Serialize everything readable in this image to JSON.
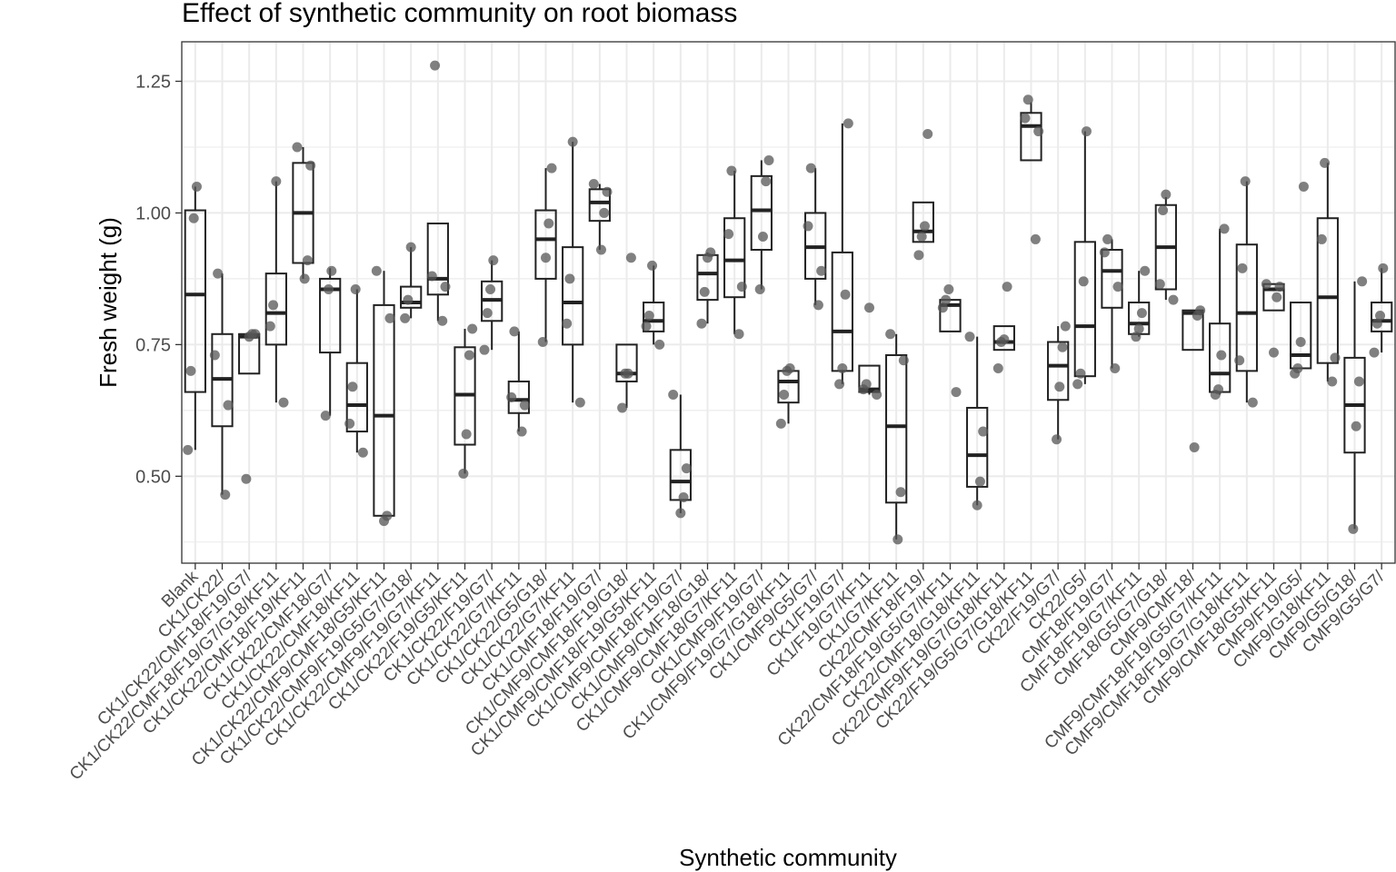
{
  "chart_data": {
    "type": "boxplot",
    "title": "Effect of synthetic community on root biomass",
    "xlabel": "Synthetic community",
    "ylabel": "Fresh weight (g)",
    "ylim": [
      0.335,
      1.325
    ],
    "yticks": [
      0.5,
      0.75,
      1.0,
      1.25
    ],
    "ytick_labels": [
      "0.50",
      "0.75",
      "1.00",
      "1.25"
    ],
    "grid": true,
    "colors": {
      "box": "#222222",
      "point": "#555555",
      "grid": "#ebebeb",
      "panel_border": "#333333"
    },
    "groups": [
      {
        "label": "Blank",
        "q1": 0.66,
        "median": 0.845,
        "q3": 1.005,
        "lower": 0.55,
        "upper": 1.05,
        "points": [
          0.55,
          0.7,
          0.99,
          1.05
        ]
      },
      {
        "label": "CK1/CK22/",
        "q1": 0.595,
        "median": 0.685,
        "q3": 0.77,
        "lower": 0.465,
        "upper": 0.885,
        "points": [
          0.465,
          0.635,
          0.73,
          0.885
        ]
      },
      {
        "label": "CK1/CK22/CMF18/F19/G7/",
        "q1": 0.695,
        "median": 0.765,
        "q3": 0.77,
        "lower": 0.695,
        "upper": 0.77,
        "points": [
          0.495,
          0.765,
          0.77,
          0.77
        ]
      },
      {
        "label": "CK1/CK22/CMF18/F19/G7/G18/KF11",
        "q1": 0.75,
        "median": 0.81,
        "q3": 0.885,
        "lower": 0.64,
        "upper": 1.06,
        "points": [
          0.64,
          0.785,
          0.825,
          1.06
        ]
      },
      {
        "label": "CK1/CK22/CMF18/F19/KF11",
        "q1": 0.905,
        "median": 1.0,
        "q3": 1.095,
        "lower": 0.875,
        "upper": 1.125,
        "points": [
          0.875,
          0.91,
          1.09,
          1.125
        ]
      },
      {
        "label": "CK1/CK22/CMF18/G7/",
        "q1": 0.735,
        "median": 0.855,
        "q3": 0.875,
        "lower": 0.615,
        "upper": 0.895,
        "points": [
          0.615,
          0.855,
          0.89
        ]
      },
      {
        "label": "CK1/CK22/CMF18/KF11",
        "q1": 0.585,
        "median": 0.635,
        "q3": 0.715,
        "lower": 0.545,
        "upper": 0.855,
        "points": [
          0.545,
          0.6,
          0.67,
          0.855
        ]
      },
      {
        "label": "CK1/CK22/CMF9/CMF18/G5/KF11",
        "q1": 0.425,
        "median": 0.615,
        "q3": 0.825,
        "lower": 0.425,
        "upper": 0.89,
        "points": [
          0.415,
          0.425,
          0.8,
          0.89
        ]
      },
      {
        "label": "CK1/CK22/CMF9/F19/G5/G7/G18/",
        "q1": 0.82,
        "median": 0.83,
        "q3": 0.86,
        "lower": 0.8,
        "upper": 0.935,
        "points": [
          0.8,
          0.835,
          0.935
        ]
      },
      {
        "label": "CK1/CK22/CMF9/F19/G7/KF11",
        "q1": 0.845,
        "median": 0.875,
        "q3": 0.98,
        "lower": 0.795,
        "upper": 0.98,
        "points": [
          0.795,
          0.86,
          0.88,
          1.28
        ]
      },
      {
        "label": "CK1/CK22/F19/G5/KF11",
        "q1": 0.56,
        "median": 0.655,
        "q3": 0.745,
        "lower": 0.505,
        "upper": 0.78,
        "points": [
          0.505,
          0.58,
          0.73,
          0.78
        ]
      },
      {
        "label": "CK1/CK22/F19/G7/",
        "q1": 0.795,
        "median": 0.835,
        "q3": 0.87,
        "lower": 0.74,
        "upper": 0.91,
        "points": [
          0.74,
          0.81,
          0.855,
          0.91
        ]
      },
      {
        "label": "CK1/CK22/G7/KF11",
        "q1": 0.62,
        "median": 0.645,
        "q3": 0.68,
        "lower": 0.585,
        "upper": 0.775,
        "points": [
          0.585,
          0.635,
          0.65,
          0.775
        ]
      },
      {
        "label": "CK1/CK22/G5/G18/",
        "q1": 0.875,
        "median": 0.95,
        "q3": 1.005,
        "lower": 0.755,
        "upper": 1.085,
        "points": [
          0.755,
          0.915,
          0.98,
          1.085
        ]
      },
      {
        "label": "CK1/CK22/G7/KF11",
        "q1": 0.75,
        "median": 0.83,
        "q3": 0.935,
        "lower": 0.64,
        "upper": 1.135,
        "points": [
          0.64,
          0.79,
          0.875,
          1.135
        ]
      },
      {
        "label": "CK1/CMF18/F19/G7/",
        "q1": 0.985,
        "median": 1.02,
        "q3": 1.045,
        "lower": 0.93,
        "upper": 1.055,
        "points": [
          0.93,
          1.0,
          1.04,
          1.055
        ]
      },
      {
        "label": "CK1/CMF9/CMF18/F19/G18/",
        "q1": 0.68,
        "median": 0.695,
        "q3": 0.75,
        "lower": 0.63,
        "upper": 0.75,
        "points": [
          0.63,
          0.695,
          0.695,
          0.915
        ]
      },
      {
        "label": "CK1/CMF9/CMF18/F19/G5/KF11",
        "q1": 0.775,
        "median": 0.795,
        "q3": 0.83,
        "lower": 0.75,
        "upper": 0.9,
        "points": [
          0.75,
          0.785,
          0.805,
          0.9
        ]
      },
      {
        "label": "CK1/CMF9/CMF18/F19/G7/",
        "q1": 0.455,
        "median": 0.49,
        "q3": 0.55,
        "lower": 0.43,
        "upper": 0.655,
        "points": [
          0.43,
          0.46,
          0.515,
          0.655
        ]
      },
      {
        "label": "CK1/CMF9/CMF18/G18/",
        "q1": 0.835,
        "median": 0.885,
        "q3": 0.92,
        "lower": 0.79,
        "upper": 0.925,
        "points": [
          0.79,
          0.85,
          0.915,
          0.925
        ]
      },
      {
        "label": "CK1/CMF9/CMF18/G7/KF11",
        "q1": 0.84,
        "median": 0.91,
        "q3": 0.99,
        "lower": 0.77,
        "upper": 1.08,
        "points": [
          0.77,
          0.86,
          0.96,
          1.08
        ]
      },
      {
        "label": "CK1/CMF9/F19/G7/",
        "q1": 0.93,
        "median": 1.005,
        "q3": 1.07,
        "lower": 0.855,
        "upper": 1.1,
        "points": [
          0.855,
          0.955,
          1.06,
          1.1
        ]
      },
      {
        "label": "CK1/CMF9/F19/G7/G18/KF11",
        "q1": 0.64,
        "median": 0.68,
        "q3": 0.7,
        "lower": 0.6,
        "upper": 0.7,
        "points": [
          0.6,
          0.655,
          0.7,
          0.705
        ]
      },
      {
        "label": "CK1/CMF9/G5/G7/",
        "q1": 0.875,
        "median": 0.935,
        "q3": 1.0,
        "lower": 0.825,
        "upper": 1.085,
        "points": [
          0.825,
          0.89,
          0.975,
          1.085
        ]
      },
      {
        "label": "CK1/F19/G7/",
        "q1": 0.7,
        "median": 0.775,
        "q3": 0.925,
        "lower": 0.675,
        "upper": 1.17,
        "points": [
          0.675,
          0.705,
          0.845,
          1.17
        ]
      },
      {
        "label": "CK1/F19/G7/KF11",
        "q1": 0.66,
        "median": 0.665,
        "q3": 0.71,
        "lower": 0.655,
        "upper": 0.71,
        "points": [
          0.655,
          0.665,
          0.675,
          0.82
        ]
      },
      {
        "label": "CK1/G7/KF11",
        "q1": 0.45,
        "median": 0.595,
        "q3": 0.73,
        "lower": 0.38,
        "upper": 0.77,
        "points": [
          0.38,
          0.47,
          0.72,
          0.77
        ]
      },
      {
        "label": "CK22/CMF18/F19/",
        "q1": 0.945,
        "median": 0.965,
        "q3": 1.02,
        "lower": 0.945,
        "upper": 1.02,
        "points": [
          0.92,
          0.955,
          0.975,
          1.15
        ]
      },
      {
        "label": "CK22/CMF18/F19/G5/G7/KF11",
        "q1": 0.775,
        "median": 0.825,
        "q3": 0.835,
        "lower": 0.775,
        "upper": 0.835,
        "points": [
          0.66,
          0.82,
          0.835,
          0.855
        ]
      },
      {
        "label": "CK22/CMF18/G18/KF11",
        "q1": 0.48,
        "median": 0.54,
        "q3": 0.63,
        "lower": 0.445,
        "upper": 0.765,
        "points": [
          0.445,
          0.49,
          0.585,
          0.765
        ]
      },
      {
        "label": "CK22/CMF9/F19/G7/G18/KF11",
        "q1": 0.74,
        "median": 0.755,
        "q3": 0.785,
        "lower": 0.74,
        "upper": 0.785,
        "points": [
          0.705,
          0.755,
          0.76,
          0.86
        ]
      },
      {
        "label": "CK22/F19/G5/G7/G18/KF11",
        "q1": 1.1,
        "median": 1.165,
        "q3": 1.19,
        "lower": 1.1,
        "upper": 1.21,
        "points": [
          0.95,
          1.155,
          1.18,
          1.215
        ]
      },
      {
        "label": "CK22/F19/G7/",
        "q1": 0.645,
        "median": 0.71,
        "q3": 0.755,
        "lower": 0.57,
        "upper": 0.785,
        "points": [
          0.57,
          0.67,
          0.745,
          0.785
        ]
      },
      {
        "label": "CK22/G5/",
        "q1": 0.69,
        "median": 0.785,
        "q3": 0.945,
        "lower": 0.675,
        "upper": 1.155,
        "points": [
          0.675,
          0.695,
          0.87,
          1.155
        ]
      },
      {
        "label": "CMF18/F19/G7/",
        "q1": 0.82,
        "median": 0.89,
        "q3": 0.93,
        "lower": 0.705,
        "upper": 0.95,
        "points": [
          0.705,
          0.86,
          0.925,
          0.95
        ]
      },
      {
        "label": "CMF18/F19/G7/KF11",
        "q1": 0.77,
        "median": 0.79,
        "q3": 0.83,
        "lower": 0.765,
        "upper": 0.89,
        "points": [
          0.765,
          0.78,
          0.81,
          0.89
        ]
      },
      {
        "label": "CMF18/G5/G7/G18/",
        "q1": 0.855,
        "median": 0.935,
        "q3": 1.015,
        "lower": 0.835,
        "upper": 1.03,
        "points": [
          0.835,
          0.865,
          1.005,
          1.035
        ]
      },
      {
        "label": "CMF9/CMF18/",
        "q1": 0.74,
        "median": 0.81,
        "q3": 0.815,
        "lower": 0.74,
        "upper": 0.815,
        "points": [
          0.555,
          0.805,
          0.815
        ]
      },
      {
        "label": "CMF9/CMF18/F19/G5/G7/KF11",
        "q1": 0.66,
        "median": 0.695,
        "q3": 0.79,
        "lower": 0.655,
        "upper": 0.97,
        "points": [
          0.655,
          0.665,
          0.73,
          0.97
        ]
      },
      {
        "label": "CMF9/CMF18/F19/G7/G18/KF11",
        "q1": 0.7,
        "median": 0.81,
        "q3": 0.94,
        "lower": 0.64,
        "upper": 1.06,
        "points": [
          0.64,
          0.72,
          0.895,
          1.06
        ]
      },
      {
        "label": "CMF9/CMF18/G5/KF11",
        "q1": 0.815,
        "median": 0.855,
        "q3": 0.865,
        "lower": 0.815,
        "upper": 0.865,
        "points": [
          0.735,
          0.84,
          0.86,
          0.865
        ]
      },
      {
        "label": "CMF9/F19/G5/",
        "q1": 0.705,
        "median": 0.73,
        "q3": 0.83,
        "lower": 0.705,
        "upper": 0.83,
        "points": [
          0.695,
          0.705,
          0.755,
          1.05
        ]
      },
      {
        "label": "CMF9/G18/KF11",
        "q1": 0.715,
        "median": 0.84,
        "q3": 0.99,
        "lower": 0.68,
        "upper": 1.095,
        "points": [
          0.68,
          0.725,
          0.95,
          1.095
        ]
      },
      {
        "label": "CMF9/G5/G18/",
        "q1": 0.545,
        "median": 0.635,
        "q3": 0.725,
        "lower": 0.4,
        "upper": 0.87,
        "points": [
          0.4,
          0.595,
          0.68,
          0.87
        ]
      },
      {
        "label": "CMF9/G5/G7/",
        "q1": 0.775,
        "median": 0.795,
        "q3": 0.83,
        "lower": 0.735,
        "upper": 0.895,
        "points": [
          0.735,
          0.79,
          0.805,
          0.895
        ]
      }
    ]
  }
}
